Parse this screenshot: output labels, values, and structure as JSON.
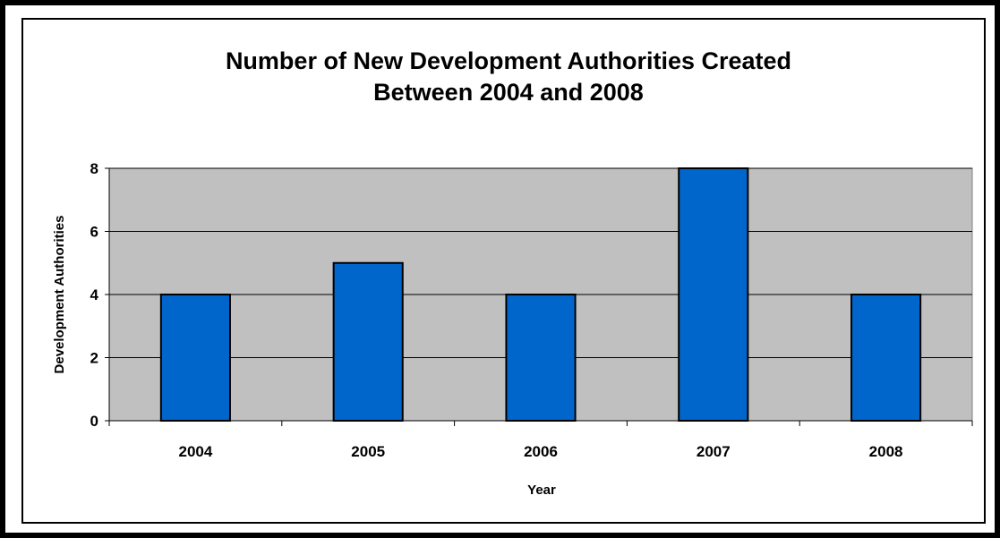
{
  "chart_data": {
    "type": "bar",
    "title_lines": [
      "Number of New Development Authorities Created",
      "Between 2004 and 2008"
    ],
    "xlabel": "Year",
    "ylabel": "Development Authorities",
    "categories": [
      "2004",
      "2005",
      "2006",
      "2007",
      "2008"
    ],
    "values": [
      4,
      5,
      4,
      8,
      4
    ],
    "ylim": [
      0,
      8
    ],
    "yticks": [
      0,
      2,
      4,
      6,
      8
    ],
    "grid": true,
    "legend": "none",
    "colors": {
      "bar": "#0066CC",
      "plot_background": "#C0C0C0",
      "gridline": "#000000"
    }
  }
}
